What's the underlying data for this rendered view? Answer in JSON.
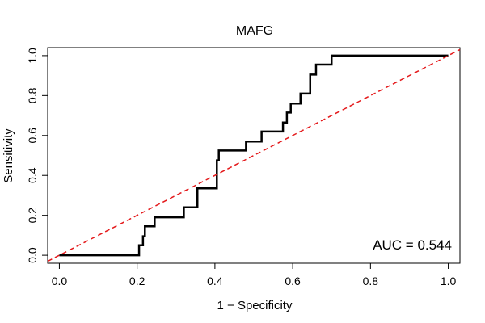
{
  "chart_data": {
    "type": "line",
    "title": "MAFG",
    "xlabel": "1 − Specificity",
    "ylabel": "Sensitivity",
    "xlim": [
      -0.03,
      1.03
    ],
    "ylim": [
      -0.04,
      1.04
    ],
    "x_ticks": [
      0.0,
      0.2,
      0.4,
      0.6,
      0.8,
      1.0
    ],
    "x_tick_labels": [
      "0.0",
      "0.2",
      "0.4",
      "0.6",
      "0.8",
      "1.0"
    ],
    "y_ticks": [
      0.0,
      0.2,
      0.4,
      0.6,
      0.8,
      1.0
    ],
    "y_tick_labels": [
      "0.0",
      "0.2",
      "0.4",
      "0.6",
      "0.8",
      "1.0"
    ],
    "annotation": "AUC = 0.544",
    "series": [
      {
        "name": "ROC curve",
        "color": "#000000",
        "style": "solid",
        "x": [
          0.0,
          0.205,
          0.205,
          0.215,
          0.215,
          0.22,
          0.22,
          0.245,
          0.245,
          0.32,
          0.32,
          0.355,
          0.355,
          0.405,
          0.405,
          0.41,
          0.41,
          0.48,
          0.48,
          0.52,
          0.52,
          0.575,
          0.575,
          0.585,
          0.585,
          0.595,
          0.595,
          0.62,
          0.62,
          0.645,
          0.645,
          0.66,
          0.66,
          0.7,
          0.7,
          1.0
        ],
        "y": [
          0.0,
          0.0,
          0.05,
          0.05,
          0.095,
          0.095,
          0.145,
          0.145,
          0.19,
          0.19,
          0.24,
          0.24,
          0.335,
          0.335,
          0.475,
          0.475,
          0.525,
          0.525,
          0.57,
          0.57,
          0.62,
          0.62,
          0.665,
          0.665,
          0.715,
          0.715,
          0.76,
          0.76,
          0.81,
          0.81,
          0.905,
          0.905,
          0.955,
          0.955,
          1.0,
          1.0
        ]
      },
      {
        "name": "Chance line",
        "color": "#e41a1c",
        "style": "dashed",
        "x": [
          -0.03,
          1.03
        ],
        "y": [
          -0.03,
          1.03
        ]
      }
    ]
  }
}
